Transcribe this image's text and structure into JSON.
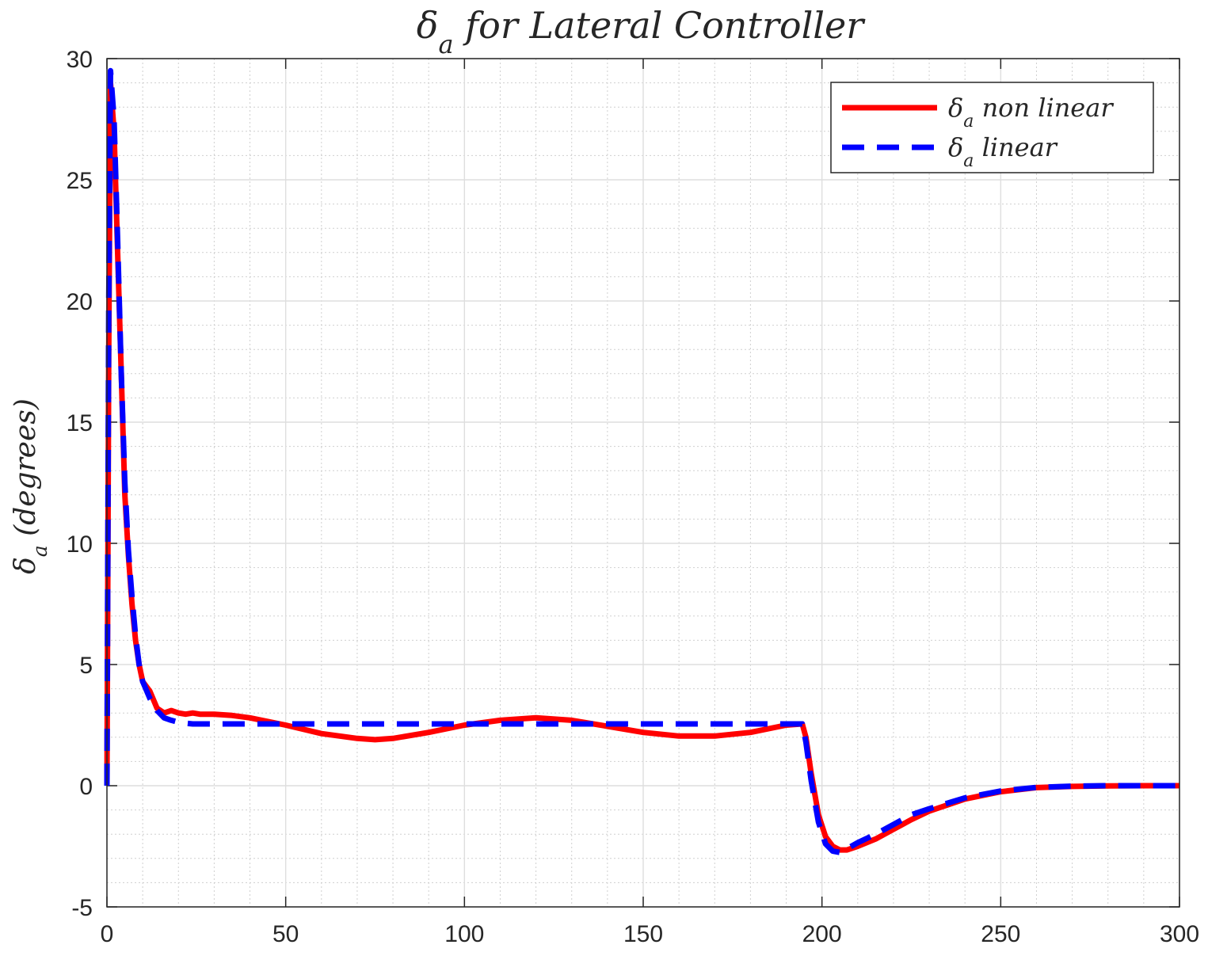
{
  "chart_data": {
    "type": "line",
    "title": "δa for Lateral Controller",
    "title_parts": {
      "sym": "δ",
      "sub": "a",
      "rest": " for Lateral Controller"
    },
    "xlabel": "",
    "ylabel": "δa (degrees)",
    "ylabel_parts": {
      "sym": "δ",
      "sub": "a",
      "rest": " (degrees)"
    },
    "xlim": [
      0,
      300
    ],
    "ylim": [
      -5,
      30
    ],
    "xticks": [
      0,
      50,
      100,
      150,
      200,
      250,
      300
    ],
    "yticks": [
      -5,
      0,
      5,
      10,
      15,
      20,
      25,
      30
    ],
    "xtick_labels": [
      "0",
      "50",
      "100",
      "150",
      "200",
      "250",
      "300"
    ],
    "ytick_labels": [
      "-5",
      "0",
      "5",
      "10",
      "15",
      "20",
      "25",
      "30"
    ],
    "grid": true,
    "minor_grid": true,
    "legend_position": "top-right",
    "series": [
      {
        "name": "δa non linear",
        "name_parts": {
          "sym": "δ",
          "sub": "a",
          "rest": " non linear"
        },
        "color": "#ff0000",
        "style": "solid",
        "x": [
          0,
          0.5,
          1,
          2,
          3,
          4,
          5,
          6,
          7,
          8,
          9,
          10,
          12,
          14,
          16,
          18,
          20,
          22,
          24,
          26,
          28,
          30,
          35,
          40,
          50,
          60,
          70,
          75,
          80,
          90,
          100,
          110,
          120,
          130,
          140,
          150,
          160,
          165,
          170,
          180,
          190,
          194.5,
          195.5,
          197,
          199,
          201,
          203,
          205,
          207,
          210,
          215,
          220,
          225,
          230,
          240,
          250,
          260,
          270,
          280,
          290,
          300
        ],
        "y": [
          0,
          18,
          29,
          27,
          22,
          17,
          12,
          9.5,
          7.5,
          6,
          5,
          4.3,
          3.9,
          3.2,
          3.0,
          3.1,
          3.0,
          2.95,
          3.0,
          2.95,
          2.95,
          2.95,
          2.9,
          2.8,
          2.5,
          2.15,
          1.95,
          1.9,
          1.95,
          2.2,
          2.5,
          2.7,
          2.8,
          2.7,
          2.45,
          2.2,
          2.05,
          2.05,
          2.05,
          2.2,
          2.5,
          2.55,
          2.0,
          0.5,
          -1.2,
          -2.1,
          -2.5,
          -2.65,
          -2.65,
          -2.5,
          -2.2,
          -1.8,
          -1.4,
          -1.05,
          -0.55,
          -0.25,
          -0.08,
          -0.03,
          -0.01,
          0,
          0
        ]
      },
      {
        "name": "δa linear",
        "name_parts": {
          "sym": "δ",
          "sub": "a",
          "rest": " linear"
        },
        "color": "#0000ff",
        "style": "dashed",
        "x": [
          0,
          0.5,
          1,
          2,
          3,
          4,
          5,
          6,
          7,
          8,
          9,
          10,
          12,
          14,
          16,
          18,
          20,
          22,
          24,
          26,
          30,
          40,
          50,
          100,
          150,
          194.5,
          195.5,
          197,
          199,
          201,
          203,
          205,
          207,
          210,
          215,
          220,
          225,
          230,
          240,
          250,
          260,
          270,
          280,
          290,
          300
        ],
        "y": [
          0,
          20,
          29.5,
          27.5,
          22.5,
          17,
          12.5,
          9.7,
          7.8,
          6.2,
          5.0,
          4.3,
          3.6,
          3.1,
          2.8,
          2.7,
          2.62,
          2.58,
          2.55,
          2.55,
          2.55,
          2.55,
          2.55,
          2.55,
          2.55,
          2.55,
          1.8,
          0.2,
          -1.5,
          -2.4,
          -2.7,
          -2.75,
          -2.6,
          -2.35,
          -2.0,
          -1.6,
          -1.2,
          -0.95,
          -0.5,
          -0.22,
          -0.07,
          -0.02,
          0,
          0,
          0
        ]
      }
    ]
  }
}
